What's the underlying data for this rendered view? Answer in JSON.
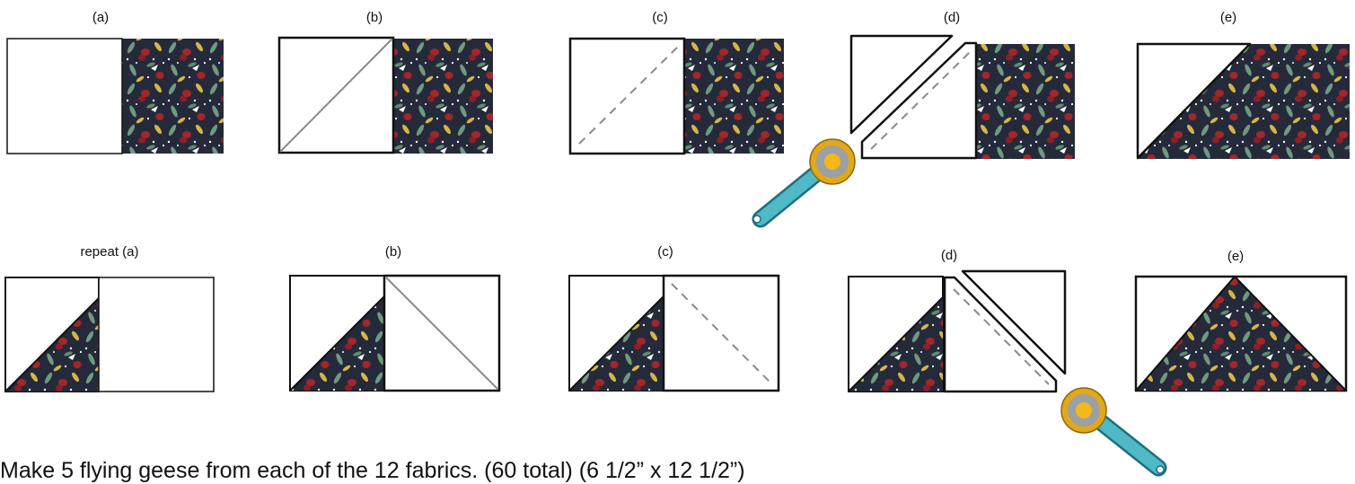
{
  "labels": {
    "row1": [
      "(a)",
      "(b)",
      "(c)",
      "(d)",
      "(e)"
    ],
    "row2": [
      "repeat (a)",
      "(b)",
      "(c)",
      "(d)",
      "(e)"
    ]
  },
  "caption": "Make 5 flying geese from each of the 12 fabrics. (60 total) (6 1/2” x 12 1/2”)",
  "colors": {
    "fabric_base": "#252a3a",
    "fabric_red": "#a3262b",
    "fabric_green": "#6f9a80",
    "fabric_yellow": "#d6b547",
    "fabric_white": "#ffffff",
    "cutter_handle": "#4fb9c6",
    "cutter_ring": "#e0a81a",
    "cutter_hub": "#9aa0a6",
    "outline": "#111111",
    "seam_line": "#8a8a8a"
  },
  "icons": [
    "rotary-cutter-icon"
  ]
}
